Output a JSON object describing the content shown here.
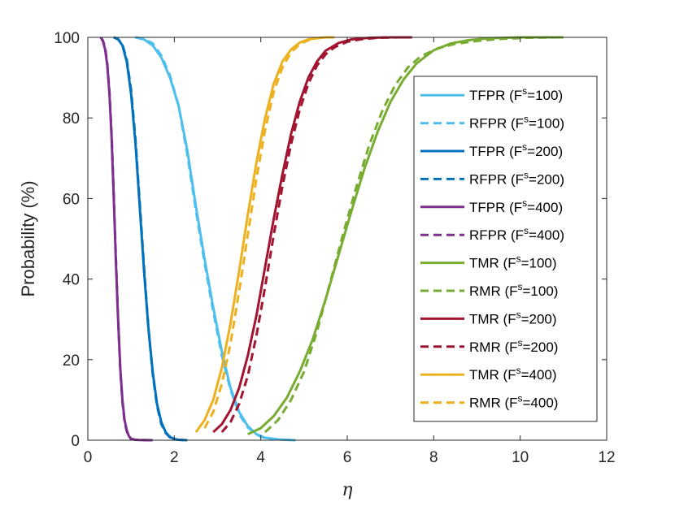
{
  "chart_data": {
    "type": "line",
    "title": "",
    "xlabel": "η",
    "ylabel": "Probability (%)",
    "xlim": [
      0,
      12
    ],
    "ylim": [
      0,
      100
    ],
    "xticks": [
      0,
      2,
      4,
      6,
      8,
      10,
      12
    ],
    "yticks": [
      0,
      20,
      40,
      60,
      80,
      100
    ],
    "grid": false,
    "legend_position": "right",
    "series": [
      {
        "name": "TFPR (F",
        "sup": "s",
        "name_tail": "=100)",
        "color": "#4dbeee",
        "dash": "solid",
        "x": [
          1.1,
          1.3,
          1.5,
          1.7,
          1.9,
          2.1,
          2.3,
          2.5,
          2.7,
          2.9,
          3.1,
          3.3,
          3.5,
          3.7,
          3.9,
          4.1,
          4.4,
          4.8
        ],
        "y": [
          100,
          99.5,
          98,
          95,
          90,
          83,
          72,
          58,
          45,
          33,
          22,
          13,
          7,
          3.5,
          1.5,
          0.6,
          0.2,
          0
        ]
      },
      {
        "name": "RFPR (F",
        "sup": "s",
        "name_tail": "=100)",
        "color": "#4dbeee",
        "dash": "dashed",
        "x": [
          1.1,
          1.3,
          1.5,
          1.7,
          1.9,
          2.1,
          2.3,
          2.5,
          2.7,
          2.9,
          3.1,
          3.3,
          3.5,
          3.7,
          3.9,
          4.1,
          4.4,
          4.8
        ],
        "y": [
          100,
          99.6,
          98.5,
          95.5,
          90.5,
          83,
          71,
          57,
          44,
          32,
          21,
          12.5,
          6.5,
          3.2,
          1.4,
          0.5,
          0.2,
          0
        ]
      },
      {
        "name": "TFPR (F",
        "sup": "s",
        "name_tail": "=200)",
        "color": "#0072bd",
        "dash": "solid",
        "x": [
          0.6,
          0.7,
          0.8,
          0.9,
          1.0,
          1.1,
          1.2,
          1.3,
          1.4,
          1.5,
          1.6,
          1.7,
          1.8,
          1.9,
          2.0,
          2.1,
          2.3
        ],
        "y": [
          100,
          99.5,
          98,
          94,
          86,
          74,
          58,
          42,
          28,
          17,
          9,
          4.5,
          2,
          0.8,
          0.3,
          0.1,
          0
        ]
      },
      {
        "name": "RFPR (F",
        "sup": "s",
        "name_tail": "=200)",
        "color": "#0072bd",
        "dash": "dashed",
        "x": [
          0.6,
          0.7,
          0.8,
          0.9,
          1.0,
          1.1,
          1.2,
          1.3,
          1.4,
          1.5,
          1.6,
          1.7,
          1.8,
          1.9,
          2.0,
          2.1,
          2.3
        ],
        "y": [
          100,
          99.6,
          98.2,
          94.5,
          87,
          75,
          59,
          43,
          28,
          16.5,
          8.5,
          4,
          1.8,
          0.7,
          0.2,
          0.1,
          0
        ]
      },
      {
        "name": "TFPR (F",
        "sup": "s",
        "name_tail": "=400)",
        "color": "#7e2f8e",
        "dash": "solid",
        "x": [
          0.3,
          0.35,
          0.4,
          0.45,
          0.5,
          0.55,
          0.6,
          0.65,
          0.7,
          0.75,
          0.8,
          0.85,
          0.9,
          0.95,
          1.0,
          1.1,
          1.2,
          1.5
        ],
        "y": [
          100,
          99,
          97,
          93,
          86,
          75,
          60,
          44,
          30,
          18,
          10,
          5,
          2.5,
          1,
          0.4,
          0.1,
          0.05,
          0
        ]
      },
      {
        "name": "RFPR (F",
        "sup": "s",
        "name_tail": "=400)",
        "color": "#7e2f8e",
        "dash": "dashed",
        "x": [
          0.3,
          0.35,
          0.4,
          0.45,
          0.5,
          0.55,
          0.6,
          0.65,
          0.7,
          0.75,
          0.8,
          0.85,
          0.9,
          0.95,
          1.0,
          1.1,
          1.2,
          1.5
        ],
        "y": [
          100,
          99.2,
          97.5,
          93.5,
          86.5,
          76,
          61,
          45,
          30,
          17.5,
          9.5,
          4.5,
          2.2,
          0.9,
          0.3,
          0.1,
          0.05,
          0
        ]
      },
      {
        "name": "TMR (F",
        "sup": "s",
        "name_tail": "=100)",
        "color": "#77ac30",
        "dash": "solid",
        "x": [
          3.7,
          4.0,
          4.3,
          4.6,
          4.9,
          5.2,
          5.5,
          5.8,
          6.1,
          6.4,
          6.7,
          7.0,
          7.3,
          7.6,
          8.0,
          8.4,
          8.8,
          9.3,
          10.0,
          11.0
        ],
        "y": [
          1.5,
          3,
          6,
          10.5,
          17,
          25,
          35,
          46,
          57,
          67.5,
          76.5,
          84,
          89.5,
          93.5,
          96.8,
          98.5,
          99.3,
          99.8,
          100,
          100
        ]
      },
      {
        "name": "RMR (F",
        "sup": "s",
        "name_tail": "=100)",
        "color": "#77ac30",
        "dash": "dashed",
        "x": [
          4.1,
          4.4,
          4.7,
          5.0,
          5.3,
          5.6,
          5.9,
          6.2,
          6.5,
          6.8,
          7.1,
          7.4,
          7.7,
          8.1,
          8.5,
          9.0,
          9.5,
          10.2,
          11.0
        ],
        "y": [
          2,
          5,
          10,
          17,
          27,
          39,
          51,
          62.5,
          73,
          81.5,
          88,
          92.5,
          95.3,
          97.3,
          98.4,
          99.1,
          99.6,
          99.9,
          100
        ]
      },
      {
        "name": "TMR (F",
        "sup": "s",
        "name_tail": "=200)",
        "color": "#a2142f",
        "dash": "solid",
        "x": [
          2.9,
          3.1,
          3.3,
          3.5,
          3.7,
          3.9,
          4.1,
          4.3,
          4.5,
          4.7,
          4.9,
          5.1,
          5.3,
          5.5,
          5.8,
          6.1,
          6.5,
          7.0,
          7.5
        ],
        "y": [
          2,
          4,
          7.5,
          13,
          21,
          31,
          43,
          55,
          66,
          76,
          84,
          90,
          94,
          96.7,
          98.6,
          99.5,
          99.9,
          100,
          100
        ]
      },
      {
        "name": "RMR (F",
        "sup": "s",
        "name_tail": "=200)",
        "color": "#a2142f",
        "dash": "dashed",
        "x": [
          3.1,
          3.3,
          3.5,
          3.7,
          3.9,
          4.1,
          4.3,
          4.5,
          4.7,
          4.9,
          5.1,
          5.3,
          5.5,
          5.7,
          6.0,
          6.3,
          6.7,
          7.2
        ],
        "y": [
          2,
          4.5,
          9,
          16,
          26,
          38,
          51,
          63,
          73.5,
          82,
          88.5,
          93,
          95.8,
          97.5,
          98.9,
          99.5,
          99.9,
          100
        ]
      },
      {
        "name": "TMR (F",
        "sup": "s",
        "name_tail": "=400)",
        "color": "#edb120",
        "dash": "solid",
        "x": [
          2.5,
          2.7,
          2.9,
          3.1,
          3.3,
          3.5,
          3.7,
          3.9,
          4.1,
          4.3,
          4.5,
          4.7,
          4.9,
          5.1,
          5.3,
          5.5,
          5.7
        ],
        "y": [
          2,
          5,
          10,
          18,
          29,
          42,
          56,
          69,
          80,
          88.5,
          94,
          97,
          98.7,
          99.5,
          99.8,
          100,
          100
        ]
      },
      {
        "name": "RMR (F",
        "sup": "s",
        "name_tail": "=400)",
        "color": "#edb120",
        "dash": "dashed",
        "x": [
          2.7,
          2.9,
          3.1,
          3.3,
          3.5,
          3.7,
          3.9,
          4.1,
          4.3,
          4.5,
          4.7,
          4.9,
          5.1,
          5.3,
          5.5,
          5.7
        ],
        "y": [
          3,
          7,
          14,
          24,
          37,
          51,
          65,
          77,
          86.5,
          92.5,
          96.3,
          98.3,
          99.3,
          99.8,
          100,
          100
        ]
      }
    ]
  }
}
